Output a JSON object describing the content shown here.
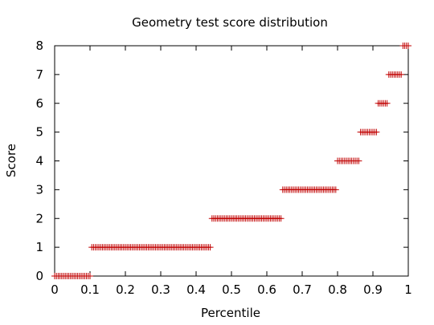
{
  "chart_data": {
    "type": "scatter",
    "title": "Geometry test score distribution",
    "xlabel": "Percentile",
    "ylabel": "Score",
    "xlim": [
      0,
      1
    ],
    "ylim": [
      0,
      8
    ],
    "xticks": [
      "0",
      "0.1",
      "0.2",
      "0.3",
      "0.4",
      "0.5",
      "0.6",
      "0.7",
      "0.8",
      "0.9",
      "1"
    ],
    "yticks": [
      "0",
      "1",
      "2",
      "3",
      "4",
      "5",
      "6",
      "7",
      "8"
    ],
    "grid": false,
    "legend": "none",
    "marker": "plus",
    "marker_color": "#c00000",
    "series": [
      {
        "segments": [
          {
            "score": 0,
            "x_start": 0.0,
            "x_end": 0.1
          },
          {
            "score": 1,
            "x_start": 0.105,
            "x_end": 0.44
          },
          {
            "score": 2,
            "x_start": 0.445,
            "x_end": 0.64
          },
          {
            "score": 3,
            "x_start": 0.645,
            "x_end": 0.795
          },
          {
            "score": 4,
            "x_start": 0.8,
            "x_end": 0.86
          },
          {
            "score": 5,
            "x_start": 0.865,
            "x_end": 0.91
          },
          {
            "score": 6,
            "x_start": 0.915,
            "x_end": 0.94
          },
          {
            "score": 7,
            "x_start": 0.945,
            "x_end": 0.98
          },
          {
            "score": 8,
            "x_start": 0.985,
            "x_end": 1.0
          }
        ],
        "step": 0.005
      }
    ]
  }
}
